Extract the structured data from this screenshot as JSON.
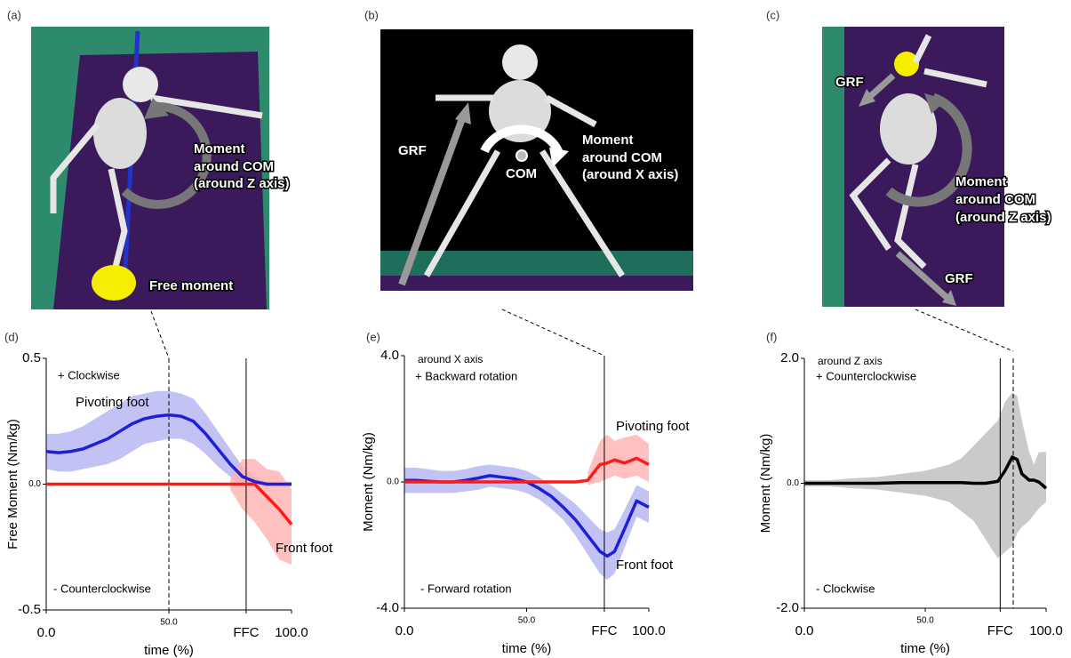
{
  "illustrations": [
    {
      "label": "(a)",
      "annotations": [
        "Moment",
        "around COM",
        "(around Z axis)",
        "Free moment"
      ]
    },
    {
      "label": "(b)",
      "annotations": [
        "GRF",
        "COM",
        "Moment",
        "around COM",
        "(around X axis)"
      ]
    },
    {
      "label": "(c)",
      "annotations": [
        "GRF",
        "Moment",
        "around COM",
        "(around Z axis)",
        "GRF"
      ]
    }
  ],
  "chart_data": [
    {
      "type": "line",
      "panel_label": "(d)",
      "xlabel": "time (%)",
      "ylabel": "Free Moment (Nm/kg)",
      "xlim": [
        0,
        100
      ],
      "ylim": [
        -0.5,
        0.5
      ],
      "xticks": [
        {
          "value": 0,
          "label": "0.0"
        },
        {
          "value": 50,
          "label": "50.0"
        },
        {
          "value": 81.5,
          "label": "FFC"
        },
        {
          "value": 100,
          "label": "100.0"
        }
      ],
      "yticks": [
        {
          "value": -0.5,
          "label": "-0.5"
        },
        {
          "value": 0,
          "label": "0.0"
        },
        0.5
      ],
      "vlines": [
        {
          "x": 50,
          "style": "dashed"
        },
        {
          "x": 81.5,
          "style": "solid"
        }
      ],
      "annotations": [
        "+ Clockwise",
        "- Counterclockwise"
      ],
      "x": [
        0,
        5,
        10,
        15,
        20,
        25,
        30,
        35,
        40,
        45,
        50,
        55,
        60,
        65,
        70,
        75,
        80,
        85,
        90,
        95,
        100
      ],
      "series": [
        {
          "name": "Pivoting foot",
          "color": "#1f1fd6",
          "band_color": "#b3b3f2",
          "values": [
            0.13,
            0.125,
            0.13,
            0.14,
            0.16,
            0.18,
            0.21,
            0.24,
            0.26,
            0.27,
            0.275,
            0.27,
            0.25,
            0.2,
            0.14,
            0.08,
            0.03,
            0.01,
            0.0,
            0.0,
            0.0
          ],
          "upper": [
            0.2,
            0.2,
            0.21,
            0.23,
            0.26,
            0.29,
            0.32,
            0.35,
            0.36,
            0.37,
            0.37,
            0.36,
            0.34,
            0.28,
            0.21,
            0.14,
            0.07,
            0.03,
            0.01,
            0.01,
            0.01
          ],
          "lower": [
            0.06,
            0.05,
            0.05,
            0.06,
            0.07,
            0.08,
            0.1,
            0.13,
            0.16,
            0.17,
            0.18,
            0.18,
            0.16,
            0.12,
            0.07,
            0.03,
            -0.01,
            -0.01,
            -0.01,
            -0.01,
            -0.01
          ]
        },
        {
          "name": "Front foot",
          "color": "#ff1a1a",
          "band_color": "#ffb0b0",
          "values": [
            0,
            0,
            0,
            0,
            0,
            0,
            0,
            0,
            0,
            0,
            0,
            0,
            0,
            0,
            0,
            0,
            0.0,
            0.0,
            -0.05,
            -0.1,
            -0.16
          ],
          "upper": [
            null,
            null,
            null,
            null,
            null,
            null,
            null,
            null,
            null,
            null,
            null,
            null,
            null,
            null,
            null,
            0.02,
            0.1,
            0.1,
            0.06,
            0.05,
            -0.02
          ],
          "lower": [
            null,
            null,
            null,
            null,
            null,
            null,
            null,
            null,
            null,
            null,
            null,
            null,
            null,
            null,
            null,
            -0.02,
            -0.1,
            -0.15,
            -0.22,
            -0.3,
            -0.32
          ]
        }
      ]
    },
    {
      "type": "line",
      "panel_label": "(e)",
      "xlabel": "time (%)",
      "ylabel": "Moment (Nm/kg)",
      "xlim": [
        0,
        100
      ],
      "ylim": [
        -4.0,
        4.0
      ],
      "xticks": [
        {
          "value": 0,
          "label": "0.0"
        },
        {
          "value": 50,
          "label": "50.0"
        },
        {
          "value": 81.8,
          "label": "FFC"
        },
        {
          "value": 100,
          "label": "100.0"
        }
      ],
      "yticks": [
        {
          "value": -4,
          "label": "-4.0"
        },
        {
          "value": 0,
          "label": "0.0"
        },
        {
          "value": 4,
          "label": "4.0"
        }
      ],
      "vlines": [
        {
          "x": 81.8,
          "style": "solid"
        }
      ],
      "annotations": [
        "around X axis",
        "+ Backward rotation",
        "- Forward rotation"
      ],
      "x": [
        0,
        5,
        10,
        15,
        20,
        25,
        30,
        35,
        40,
        45,
        50,
        55,
        60,
        65,
        70,
        75,
        80,
        83,
        86,
        90,
        95,
        100
      ],
      "series": [
        {
          "name": "Pivoting foot",
          "color": "#1f1fd6",
          "band_color": "#b3b3f2",
          "values": [
            0.05,
            0.05,
            0.02,
            0.0,
            0.0,
            0.05,
            0.12,
            0.2,
            0.15,
            0.1,
            0.0,
            -0.2,
            -0.45,
            -0.8,
            -1.2,
            -1.7,
            -2.2,
            -2.35,
            -2.2,
            -1.5,
            -0.6,
            -0.8
          ],
          "upper": [
            0.45,
            0.45,
            0.4,
            0.35,
            0.35,
            0.4,
            0.5,
            0.55,
            0.5,
            0.45,
            0.35,
            0.15,
            -0.1,
            -0.4,
            -0.7,
            -1.1,
            -1.5,
            -1.6,
            -1.5,
            -0.9,
            -0.1,
            -0.3
          ],
          "lower": [
            -0.35,
            -0.35,
            -0.35,
            -0.35,
            -0.35,
            -0.3,
            -0.25,
            -0.15,
            -0.2,
            -0.25,
            -0.35,
            -0.55,
            -0.85,
            -1.2,
            -1.7,
            -2.3,
            -2.9,
            -3.1,
            -2.9,
            -2.1,
            -1.1,
            -1.3
          ]
        },
        {
          "name": "Front foot",
          "color": "#ff1a1a",
          "band_color": "#ffb0b0",
          "values": [
            0,
            0,
            0,
            0,
            0,
            0,
            0,
            0,
            0,
            0,
            0,
            0,
            0,
            0,
            0,
            0.05,
            0.55,
            0.6,
            0.7,
            0.6,
            0.75,
            0.55
          ],
          "upper": [
            null,
            null,
            null,
            null,
            null,
            null,
            null,
            null,
            null,
            null,
            null,
            null,
            null,
            null,
            null,
            0.3,
            1.3,
            1.5,
            1.3,
            1.4,
            1.5,
            1.2
          ],
          "lower": [
            null,
            null,
            null,
            null,
            null,
            null,
            null,
            null,
            null,
            null,
            null,
            null,
            null,
            null,
            null,
            -0.1,
            0.0,
            0.1,
            0.2,
            0.1,
            0.2,
            0.0
          ]
        }
      ]
    },
    {
      "type": "line",
      "panel_label": "(f)",
      "xlabel": "time (%)",
      "ylabel": "Moment (Nm/kg)",
      "xlim": [
        0,
        100
      ],
      "ylim": [
        -2.0,
        2.0
      ],
      "xticks": [
        {
          "value": 0,
          "label": "0.0"
        },
        {
          "value": 50,
          "label": "50.0"
        },
        {
          "value": 81,
          "label": "FFC"
        },
        {
          "value": 100,
          "label": "100.0"
        }
      ],
      "yticks": [
        {
          "value": -2,
          "label": "-2.0"
        },
        {
          "value": 0,
          "label": "0.0"
        },
        {
          "value": 2,
          "label": "2.0"
        }
      ],
      "vlines": [
        {
          "x": 81,
          "style": "solid"
        },
        {
          "x": 86.4,
          "style": "dashed"
        }
      ],
      "annotations": [
        "around Z axis",
        "+ Counterclockwise",
        "- Clockwise"
      ],
      "x": [
        0,
        10,
        20,
        30,
        40,
        50,
        60,
        65,
        70,
        75,
        80,
        83,
        86,
        88,
        90,
        93,
        95,
        97,
        100
      ],
      "series": [
        {
          "color": "#000000",
          "band_color": "#bdbdbd",
          "values": [
            0,
            0,
            0,
            0,
            0.01,
            0.01,
            0.01,
            0.01,
            0,
            0.0,
            0.03,
            0.2,
            0.42,
            0.38,
            0.15,
            0.05,
            0.05,
            0.02,
            -0.08
          ],
          "upper": [
            0.05,
            0.05,
            0.08,
            0.1,
            0.15,
            0.2,
            0.3,
            0.4,
            0.6,
            0.8,
            1.0,
            1.3,
            1.45,
            1.4,
            1.0,
            0.5,
            0.3,
            0.5,
            0.5
          ],
          "lower": [
            -0.05,
            -0.05,
            -0.08,
            -0.1,
            -0.15,
            -0.2,
            -0.3,
            -0.45,
            -0.6,
            -0.9,
            -1.2,
            -1.1,
            -1.0,
            -0.8,
            -0.7,
            -0.6,
            -0.5,
            -0.4,
            -0.3
          ]
        }
      ]
    }
  ]
}
